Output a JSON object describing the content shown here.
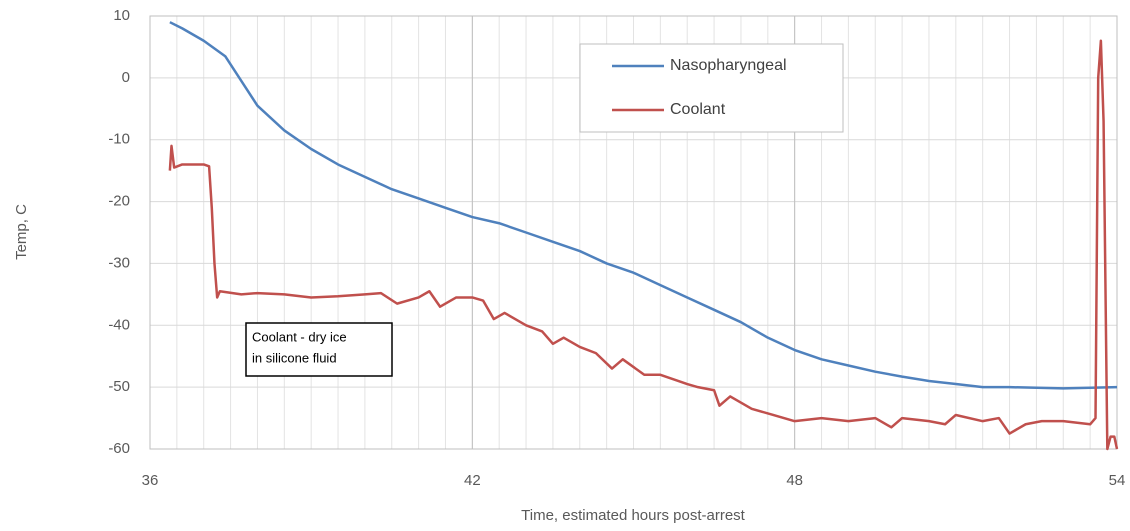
{
  "chart_data": {
    "type": "line",
    "y_label": "Temp, C",
    "x_label": "Time, estimated hours post-arrest",
    "xlim": [
      36,
      54
    ],
    "xticks": [
      36,
      42,
      48,
      54
    ],
    "x_gridlines": [
      36.5,
      37,
      37.5,
      38,
      38.5,
      39,
      39.5,
      40,
      40.5,
      41,
      41.5,
      42,
      42.5,
      43,
      43.5,
      44,
      44.5,
      45,
      45.5,
      46,
      46.5,
      47,
      47.5,
      48,
      48.5,
      49,
      49.5,
      50,
      50.5,
      51,
      51.5,
      52,
      52.5,
      53,
      53.5
    ],
    "ylim": [
      -60,
      10
    ],
    "yticks": [
      -60,
      -50,
      -40,
      -30,
      -20,
      -10,
      0,
      10
    ],
    "grid": true,
    "annotation": [
      "Coolant - dry ice",
      "in silicone fluid"
    ],
    "series": [
      {
        "name": "Nasopharyngeal",
        "color": "#4f81bd",
        "x": [
          36.37,
          36.6,
          37,
          37.4,
          37.7,
          38,
          38.5,
          39,
          39.5,
          40,
          40.5,
          41,
          41.5,
          42,
          42.5,
          43,
          43.5,
          44,
          44.5,
          45,
          45.5,
          46,
          46.5,
          47,
          47.5,
          48,
          48.5,
          49,
          49.5,
          50,
          50.5,
          51,
          51.5,
          52,
          53,
          54
        ],
        "values": [
          9,
          8,
          6,
          3.5,
          -0.5,
          -4.5,
          -8.5,
          -11.5,
          -14,
          -16,
          -18,
          -19.5,
          -21,
          -22.5,
          -23.5,
          -25,
          -26.5,
          -28,
          -30,
          -31.5,
          -33.5,
          -35.5,
          -37.5,
          -39.5,
          -42,
          -44,
          -45.5,
          -46.5,
          -47.5,
          -48.3,
          -49,
          -49.5,
          -50,
          -50,
          -50.2,
          -50
        ]
      },
      {
        "name": "Coolant",
        "color": "#c0504d",
        "x": [
          36.37,
          36.4,
          36.45,
          36.6,
          37,
          37.1,
          37.15,
          37.2,
          37.25,
          37.3,
          37.7,
          38,
          38.5,
          39,
          39.5,
          40,
          40.3,
          40.6,
          41,
          41.2,
          41.4,
          41.7,
          42,
          42.2,
          42.4,
          42.6,
          43,
          43.3,
          43.5,
          43.7,
          44,
          44.3,
          44.6,
          44.8,
          45.2,
          45.5,
          46,
          46.2,
          46.5,
          46.6,
          46.8,
          47.2,
          47.6,
          48,
          48.5,
          49,
          49.5,
          49.8,
          50,
          50.5,
          50.8,
          51,
          51.5,
          51.8,
          52,
          52.3,
          52.6,
          53,
          53.5,
          53.6,
          53.65,
          53.7,
          53.75,
          53.8,
          53.82,
          53.88,
          53.95,
          54
        ],
        "values": [
          -15,
          -11,
          -14.5,
          -14,
          -14,
          -14.3,
          -21,
          -30,
          -35.5,
          -34.5,
          -35,
          -34.8,
          -35,
          -35.5,
          -35.3,
          -35,
          -34.8,
          -36.5,
          -35.5,
          -34.5,
          -37,
          -35.5,
          -35.5,
          -36,
          -39,
          -38,
          -40,
          -41,
          -43,
          -42,
          -43.5,
          -44.5,
          -47,
          -45.5,
          -48,
          -48,
          -49.5,
          -50,
          -50.5,
          -53,
          -51.5,
          -53.5,
          -54.5,
          -55.5,
          -55,
          -55.5,
          -55,
          -56.5,
          -55,
          -55.5,
          -56,
          -54.5,
          -55.5,
          -55,
          -57.5,
          -56,
          -55.5,
          -55.5,
          -56,
          -55,
          0,
          6,
          -7,
          -45,
          -60,
          -58,
          -58,
          -60
        ]
      }
    ]
  }
}
